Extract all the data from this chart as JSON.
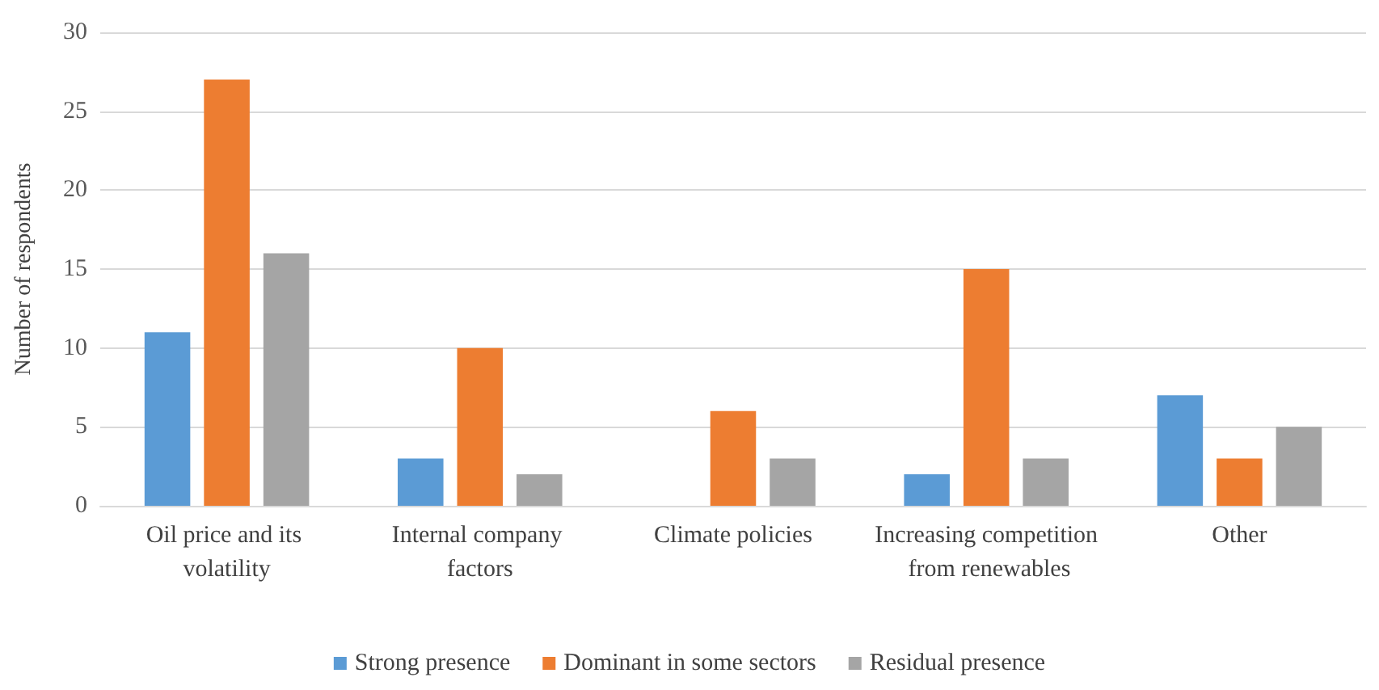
{
  "chart_data": {
    "type": "bar",
    "ylabel": "Number of respondents",
    "categories": [
      "Oil price and its volatility",
      "Internal company factors",
      "Climate policies",
      "Increasing competition from renewables",
      "Other"
    ],
    "series": [
      {
        "name": "Strong presence",
        "color": "#5b9bd5",
        "values": [
          11,
          3,
          0,
          2,
          7
        ]
      },
      {
        "name": "Dominant in some sectors",
        "color": "#ed7d31",
        "values": [
          27,
          10,
          6,
          15,
          3
        ]
      },
      {
        "name": "Residual presence",
        "color": "#a5a5a5",
        "values": [
          16,
          2,
          3,
          3,
          5
        ]
      }
    ],
    "ylim": [
      0,
      30
    ],
    "yticks": [
      0,
      5,
      10,
      15,
      20,
      25,
      30
    ],
    "grid": "y",
    "legend": "bottom"
  }
}
